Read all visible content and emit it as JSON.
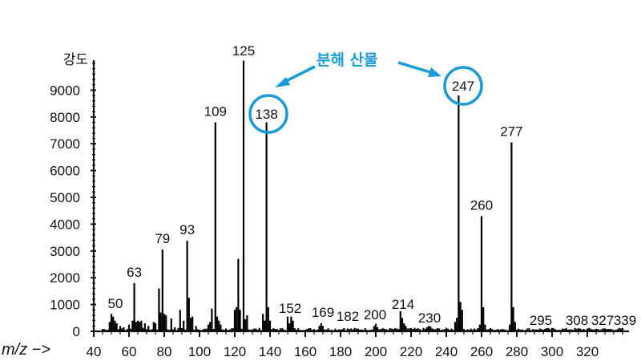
{
  "chart_data": {
    "type": "bar",
    "title": "",
    "xlabel": "m/z −>",
    "ylabel": "강도",
    "xlim": [
      40,
      340
    ],
    "ylim": [
      0,
      10000
    ],
    "x_ticks": [
      40,
      60,
      80,
      100,
      120,
      140,
      160,
      180,
      200,
      220,
      240,
      260,
      280,
      300,
      320
    ],
    "y_ticks": [
      0,
      1000,
      2000,
      3000,
      4000,
      5000,
      6000,
      7000,
      8000,
      9000
    ],
    "grid": false,
    "labeled_peaks": [
      {
        "mz": 50,
        "intensity": 650
      },
      {
        "mz": 63,
        "intensity": 1800
      },
      {
        "mz": 79,
        "intensity": 3050
      },
      {
        "mz": 93,
        "intensity": 3380
      },
      {
        "mz": 109,
        "intensity": 7800
      },
      {
        "mz": 125,
        "intensity": 10100
      },
      {
        "mz": 138,
        "intensity": 7800
      },
      {
        "mz": 152,
        "intensity": 550
      },
      {
        "mz": 169,
        "intensity": 300
      },
      {
        "mz": 182,
        "intensity": 120
      },
      {
        "mz": 200,
        "intensity": 280
      },
      {
        "mz": 214,
        "intensity": 750
      },
      {
        "mz": 230,
        "intensity": 200
      },
      {
        "mz": 247,
        "intensity": 8800
      },
      {
        "mz": 260,
        "intensity": 4300
      },
      {
        "mz": 277,
        "intensity": 7050
      },
      {
        "mz": 295,
        "intensity": 60
      },
      {
        "mz": 308,
        "intensity": 40
      },
      {
        "mz": 327,
        "intensity": 40
      },
      {
        "mz": 339,
        "intensity": 30
      }
    ],
    "minor_peaks": [
      {
        "mz": 49,
        "intensity": 350
      },
      {
        "mz": 51,
        "intensity": 550
      },
      {
        "mz": 52,
        "intensity": 400
      },
      {
        "mz": 53,
        "intensity": 300
      },
      {
        "mz": 55,
        "intensity": 200
      },
      {
        "mz": 57,
        "intensity": 150
      },
      {
        "mz": 60,
        "intensity": 250
      },
      {
        "mz": 62,
        "intensity": 400
      },
      {
        "mz": 64,
        "intensity": 350
      },
      {
        "mz": 65,
        "intensity": 400
      },
      {
        "mz": 66,
        "intensity": 350
      },
      {
        "mz": 67,
        "intensity": 400
      },
      {
        "mz": 69,
        "intensity": 300
      },
      {
        "mz": 71,
        "intensity": 200
      },
      {
        "mz": 74,
        "intensity": 350
      },
      {
        "mz": 75,
        "intensity": 300
      },
      {
        "mz": 77,
        "intensity": 1600
      },
      {
        "mz": 78,
        "intensity": 700
      },
      {
        "mz": 80,
        "intensity": 650
      },
      {
        "mz": 81,
        "intensity": 600
      },
      {
        "mz": 84,
        "intensity": 480
      },
      {
        "mz": 86,
        "intensity": 150
      },
      {
        "mz": 89,
        "intensity": 800
      },
      {
        "mz": 91,
        "intensity": 400
      },
      {
        "mz": 94,
        "intensity": 1250
      },
      {
        "mz": 95,
        "intensity": 500
      },
      {
        "mz": 96,
        "intensity": 550
      },
      {
        "mz": 98,
        "intensity": 200
      },
      {
        "mz": 105,
        "intensity": 250
      },
      {
        "mz": 106,
        "intensity": 350
      },
      {
        "mz": 107,
        "intensity": 850
      },
      {
        "mz": 110,
        "intensity": 550
      },
      {
        "mz": 111,
        "intensity": 400
      },
      {
        "mz": 112,
        "intensity": 250
      },
      {
        "mz": 120,
        "intensity": 800
      },
      {
        "mz": 121,
        "intensity": 900
      },
      {
        "mz": 122,
        "intensity": 2700
      },
      {
        "mz": 123,
        "intensity": 800
      },
      {
        "mz": 126,
        "intensity": 450
      },
      {
        "mz": 127,
        "intensity": 600
      },
      {
        "mz": 136,
        "intensity": 650
      },
      {
        "mz": 137,
        "intensity": 400
      },
      {
        "mz": 139,
        "intensity": 900
      },
      {
        "mz": 140,
        "intensity": 400
      },
      {
        "mz": 150,
        "intensity": 550
      },
      {
        "mz": 151,
        "intensity": 300
      },
      {
        "mz": 153,
        "intensity": 400
      },
      {
        "mz": 168,
        "intensity": 200
      },
      {
        "mz": 170,
        "intensity": 200
      },
      {
        "mz": 199,
        "intensity": 200
      },
      {
        "mz": 201,
        "intensity": 150
      },
      {
        "mz": 215,
        "intensity": 500
      },
      {
        "mz": 216,
        "intensity": 300
      },
      {
        "mz": 217,
        "intensity": 200
      },
      {
        "mz": 229,
        "intensity": 150
      },
      {
        "mz": 231,
        "intensity": 180
      },
      {
        "mz": 245,
        "intensity": 350
      },
      {
        "mz": 246,
        "intensity": 500
      },
      {
        "mz": 248,
        "intensity": 1100
      },
      {
        "mz": 249,
        "intensity": 800
      },
      {
        "mz": 259,
        "intensity": 250
      },
      {
        "mz": 261,
        "intensity": 900
      },
      {
        "mz": 262,
        "intensity": 250
      },
      {
        "mz": 276,
        "intensity": 250
      },
      {
        "mz": 278,
        "intensity": 900
      },
      {
        "mz": 279,
        "intensity": 350
      },
      {
        "mz": 281,
        "intensity": 100
      }
    ],
    "annotations": {
      "text": "분해 산물",
      "color": "#1a9ad6",
      "circled_peaks": [
        138,
        247
      ]
    }
  },
  "labels": {
    "y_axis_title": "강도",
    "x_axis_title": "m/z −>",
    "annotation_text": "분해 산물",
    "y_ticks": [
      "0",
      "1000",
      "2000",
      "3000",
      "4000",
      "5000",
      "6000",
      "7000",
      "8000",
      "9000"
    ],
    "x_ticks": [
      "40",
      "60",
      "80",
      "100",
      "120",
      "140",
      "160",
      "180",
      "200",
      "220",
      "240",
      "260",
      "280",
      "300",
      "320"
    ],
    "peaks": [
      "50",
      "63",
      "79",
      "93",
      "109",
      "125",
      "138",
      "152",
      "169",
      "182",
      "200",
      "214",
      "230",
      "247",
      "260",
      "277",
      "295",
      "308",
      "327",
      "339"
    ]
  },
  "colors": {
    "accent": "#1a9ad6",
    "ink": "#111111"
  }
}
